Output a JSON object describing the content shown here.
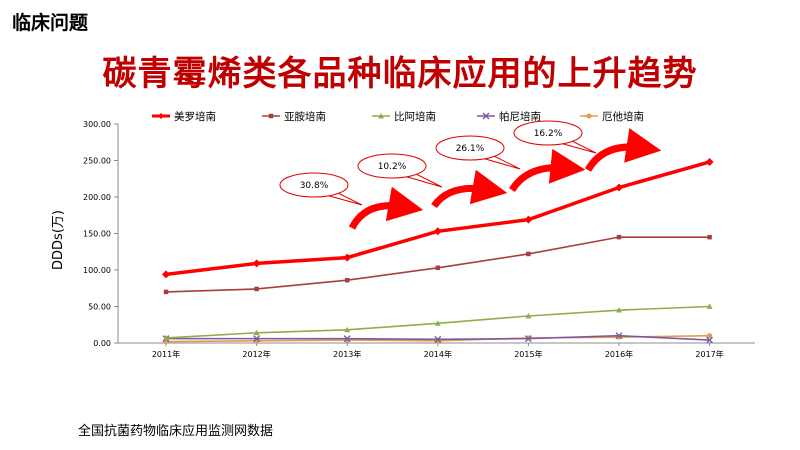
{
  "header": {
    "section": "临床问题"
  },
  "slide": {
    "title": "碳青霉烯类各品种临床应用的上升趋势"
  },
  "footer": {
    "source": "全国抗菌药物临床应用监测网数据"
  },
  "chart_data": {
    "type": "line",
    "ylabel": "DDDs(万)",
    "xlabel": "",
    "ylim": [
      0,
      300
    ],
    "yticks": [
      "0.00",
      "50.00",
      "100.00",
      "150.00",
      "200.00",
      "250.00",
      "300.00"
    ],
    "categories": [
      "2011年",
      "2012年",
      "2013年",
      "2014年",
      "2015年",
      "2016年",
      "2017年"
    ],
    "grid": false,
    "legend": "top",
    "series": [
      {
        "name": "美罗培南",
        "color": "#ff0000",
        "marker": "diamond",
        "values": [
          94,
          109,
          117,
          153,
          169,
          213,
          248
        ]
      },
      {
        "name": "亚胺培南",
        "color": "#a5403f",
        "marker": "square",
        "values": [
          70,
          74,
          86,
          103,
          122,
          145,
          145
        ]
      },
      {
        "name": "比阿培南",
        "color": "#8eae4a",
        "marker": "triangle",
        "values": [
          7,
          14,
          18,
          27,
          37,
          45,
          50
        ]
      },
      {
        "name": "帕尼培南",
        "color": "#7a5aa6",
        "marker": "x",
        "values": [
          6,
          6,
          6,
          5,
          6,
          10,
          4
        ]
      },
      {
        "name": "厄他培南",
        "color": "#e79a4a",
        "marker": "circle",
        "values": [
          2,
          3,
          4,
          3,
          7,
          8,
          10
        ]
      }
    ],
    "annotations": [
      {
        "text": "30.8%",
        "between": [
          2012,
          2013
        ]
      },
      {
        "text": "10.2%",
        "between": [
          2013,
          2014
        ]
      },
      {
        "text": "26.1%",
        "between": [
          2014,
          2015
        ]
      },
      {
        "text": "16.2%",
        "between": [
          2015,
          2016
        ]
      }
    ]
  }
}
